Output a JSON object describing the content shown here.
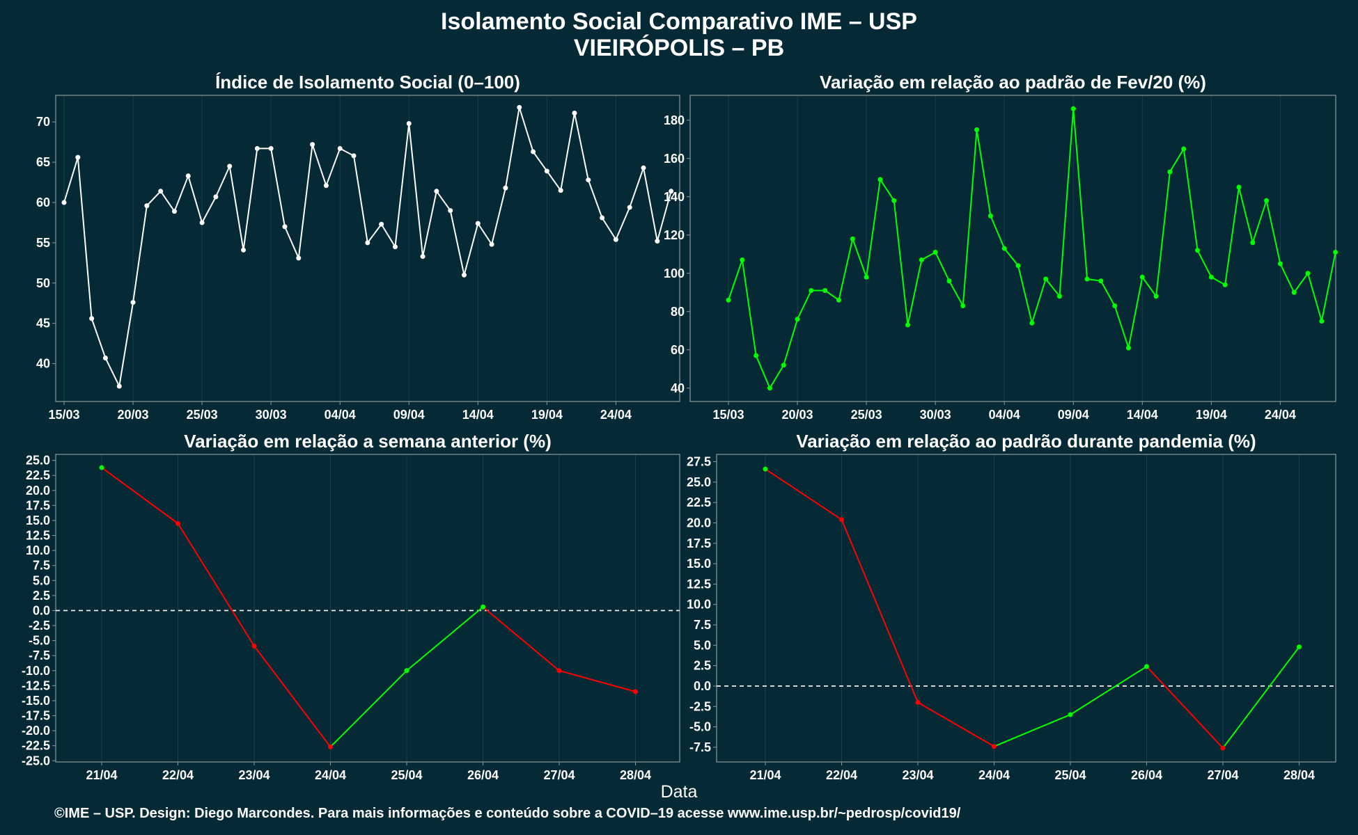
{
  "header": {
    "title_line1": "Isolamento Social Comparativo IME – USP",
    "title_line2": "VIEIRÓPOLIS – PB"
  },
  "footer": {
    "credit": "©IME – USP. Design: Diego Marcondes. Para mais informações e conteúdo sobre a COVID–19 acesse www.ime.usp.br/~pedrosp/covid19/",
    "xlabel": "Data"
  },
  "colors": {
    "background": "#052a35",
    "white_series": "#ffffff",
    "positive": "#00ff00",
    "negative": "#ff0000",
    "grid": "#15414c",
    "frame": "#8a9ba1"
  },
  "chart_data": [
    {
      "id": "indice",
      "type": "line",
      "title": "Índice de Isolamento Social (0–100)",
      "x_start": "15/03",
      "x_tick_labels": [
        "15/03",
        "20/03",
        "25/03",
        "30/03",
        "04/04",
        "09/04",
        "14/04",
        "19/04",
        "24/04"
      ],
      "x_tick_index": [
        0,
        5,
        10,
        15,
        20,
        25,
        30,
        35,
        40
      ],
      "y_ticks": [
        40,
        45,
        50,
        55,
        60,
        65,
        70
      ],
      "ylim": [
        35.3,
        73.3
      ],
      "color": "white",
      "values": [
        60.0,
        65.6,
        45.6,
        40.7,
        37.2,
        47.6,
        59.6,
        61.4,
        58.9,
        63.3,
        57.5,
        60.7,
        64.5,
        54.1,
        66.7,
        66.7,
        57.0,
        53.1,
        67.2,
        62.1,
        66.7,
        65.8,
        55.0,
        57.3,
        54.5,
        69.8,
        53.3,
        61.4,
        59.0,
        51.0,
        57.4,
        54.8,
        61.8,
        71.8,
        66.3,
        63.9,
        61.5,
        71.1,
        62.8,
        58.1,
        55.4,
        59.4,
        64.3,
        55.2,
        61.4
      ]
    },
    {
      "id": "fev20",
      "type": "line",
      "title": "Variação em relação ao padrão de Fev/20 (%)",
      "x_start": "15/03",
      "x_tick_labels": [
        "15/03",
        "20/03",
        "25/03",
        "30/03",
        "04/04",
        "09/04",
        "14/04",
        "19/04",
        "24/04"
      ],
      "x_tick_index": [
        0,
        5,
        10,
        15,
        20,
        25,
        30,
        35,
        40
      ],
      "y_ticks": [
        40,
        60,
        80,
        100,
        120,
        140,
        160,
        180
      ],
      "ylim": [
        33,
        193
      ],
      "color": "green",
      "values": [
        86,
        107,
        57,
        40,
        52,
        76,
        91,
        91,
        86,
        118,
        98,
        149,
        138,
        73,
        107,
        111,
        96,
        83,
        175,
        130,
        113,
        104,
        74,
        97,
        88,
        186,
        97,
        96,
        83,
        61,
        98,
        88,
        153,
        165,
        112,
        98,
        94,
        145,
        116,
        138,
        105,
        90,
        100,
        75,
        111
      ]
    },
    {
      "id": "semana",
      "type": "line",
      "title": "Variação em relação a semana anterior (%)",
      "categories": [
        "21/04",
        "22/04",
        "23/04",
        "24/04",
        "25/04",
        "26/04",
        "27/04",
        "28/04"
      ],
      "values": [
        23.8,
        14.5,
        -5.9,
        -22.7,
        -10.0,
        0.6,
        -10.0,
        -13.5
      ],
      "y_ticks": [
        -25.0,
        -22.5,
        -20.0,
        -17.5,
        -15.0,
        -12.5,
        -10.0,
        -7.5,
        -5.0,
        -2.5,
        0.0,
        2.5,
        5.0,
        7.5,
        10.0,
        12.5,
        15.0,
        17.5,
        20.0,
        22.5,
        25.0
      ],
      "ylim": [
        -25.2,
        26.0
      ],
      "colored_by_trend": true
    },
    {
      "id": "pandemia",
      "type": "line",
      "title": "Variação em relação ao padrão durante pandemia (%)",
      "categories": [
        "21/04",
        "22/04",
        "23/04",
        "24/04",
        "25/04",
        "26/04",
        "27/04",
        "28/04"
      ],
      "values": [
        26.6,
        20.4,
        -2.0,
        -7.4,
        -3.5,
        2.4,
        -7.6,
        4.8
      ],
      "y_ticks": [
        -7.5,
        -5.0,
        -2.5,
        0.0,
        2.5,
        5.0,
        7.5,
        10.0,
        12.5,
        15.0,
        17.5,
        20.0,
        22.5,
        25.0,
        27.5
      ],
      "ylim": [
        -9.3,
        28.4
      ],
      "colored_by_trend": true
    }
  ]
}
